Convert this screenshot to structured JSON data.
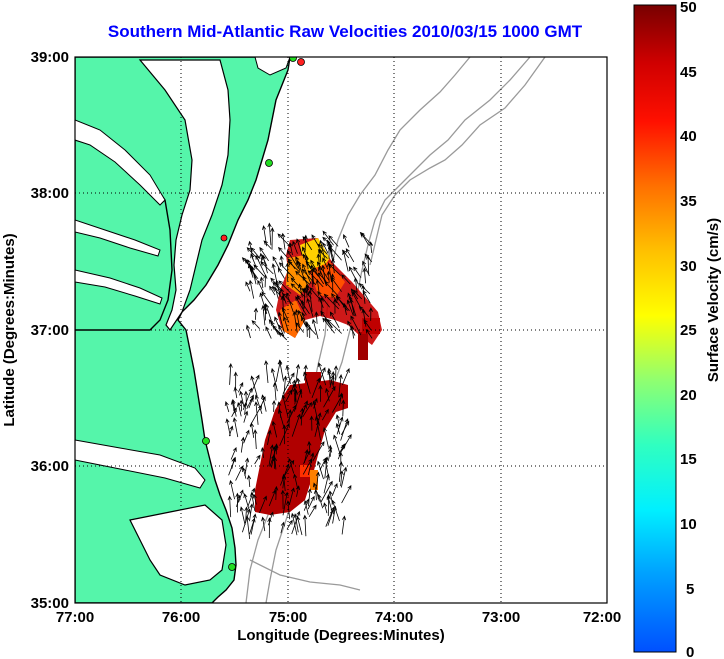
{
  "title": "Southern Mid-Atlantic Raw Velocities 2010/03/15 1000 GMT",
  "axes": {
    "xlabel": "Longitude (Degrees:Minutes)",
    "ylabel": "Latitude (Degrees:Minutes)",
    "x_ticks": [
      "77:00",
      "76:00",
      "75:00",
      "74:00",
      "73:00",
      "72:00"
    ],
    "y_ticks": [
      "39:00",
      "38:00",
      "37:00",
      "36:00",
      "35:00"
    ]
  },
  "colorbar": {
    "label": "Surface Velocity (cm/s)",
    "ticks": [
      "50",
      "45",
      "40",
      "35",
      "30",
      "25",
      "20",
      "15",
      "10",
      "5",
      "0"
    ],
    "range": [
      0,
      50
    ]
  },
  "colors": {
    "land": "#55f5aa",
    "coast": "#000000",
    "bathymetry": "#9a9a9a",
    "grid": "#000000",
    "title": "#0000ff",
    "station": "#22dd22",
    "station_red": "#ff2020"
  }
}
